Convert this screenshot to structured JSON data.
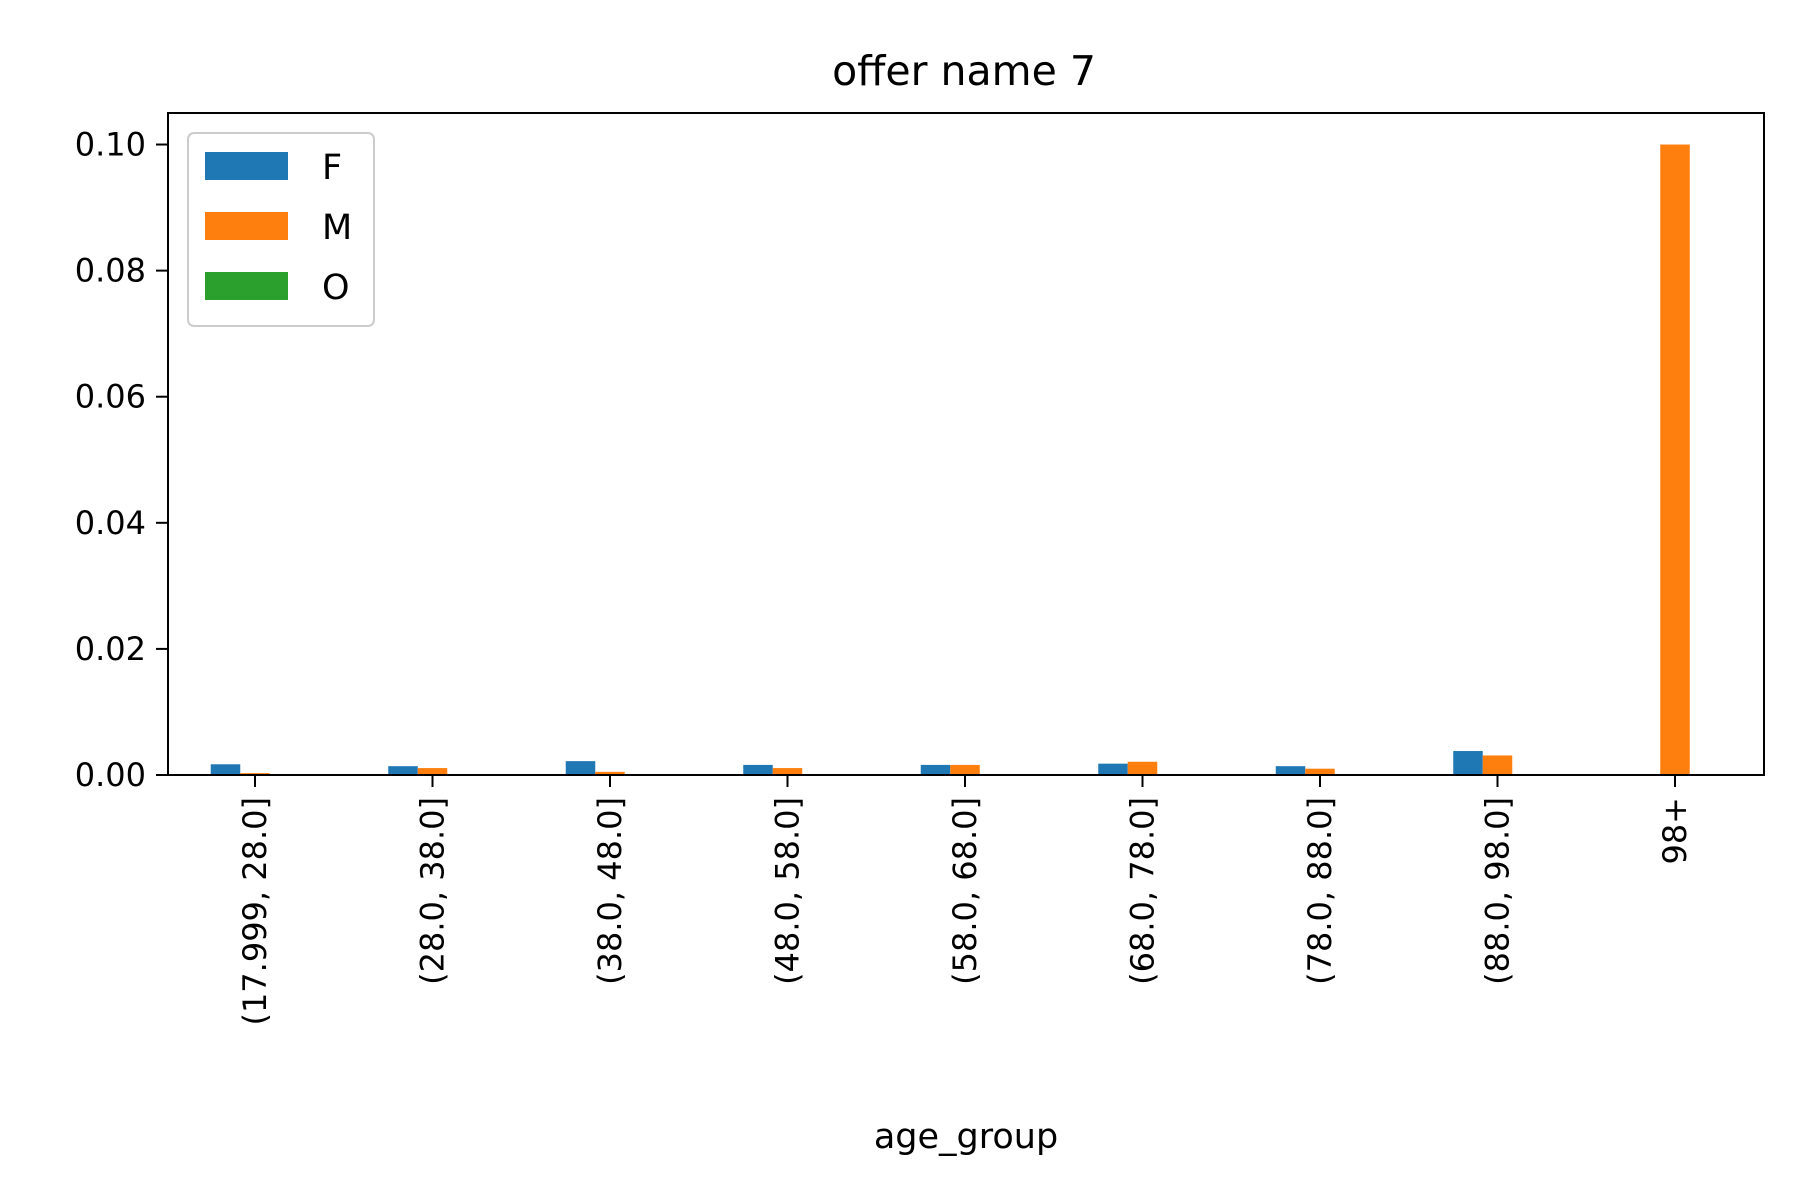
{
  "chart_data": {
    "type": "bar",
    "title": "offer name 7",
    "xlabel": "age_group",
    "ylabel": "",
    "categories": [
      "(17.999, 28.0]",
      "(28.0, 38.0]",
      "(38.0, 48.0]",
      "(48.0, 58.0]",
      "(58.0, 68.0]",
      "(68.0, 78.0]",
      "(78.0, 88.0]",
      "(88.0, 98.0]",
      "98+"
    ],
    "series": [
      {
        "name": "F",
        "color": "#1f77b4",
        "values": [
          0.0017,
          0.0014,
          0.0022,
          0.0016,
          0.0016,
          0.0018,
          0.0014,
          0.0038,
          0.0
        ]
      },
      {
        "name": "M",
        "color": "#ff7f0e",
        "values": [
          0.0003,
          0.0011,
          0.0005,
          0.0011,
          0.0016,
          0.0021,
          0.001,
          0.0031,
          0.1
        ]
      },
      {
        "name": "O",
        "color": "#2ca02c",
        "values": [
          0.0,
          0.0,
          0.0,
          0.0,
          0.0,
          0.0,
          0.0,
          0.0,
          0.0
        ]
      }
    ],
    "ylim": [
      0,
      0.105
    ],
    "yticks": [
      "0.00",
      "0.02",
      "0.04",
      "0.06",
      "0.08",
      "0.10"
    ],
    "ytick_values": [
      0,
      0.02,
      0.04,
      0.06,
      0.08,
      0.1
    ],
    "grid": false,
    "legend_position": "top-left"
  }
}
